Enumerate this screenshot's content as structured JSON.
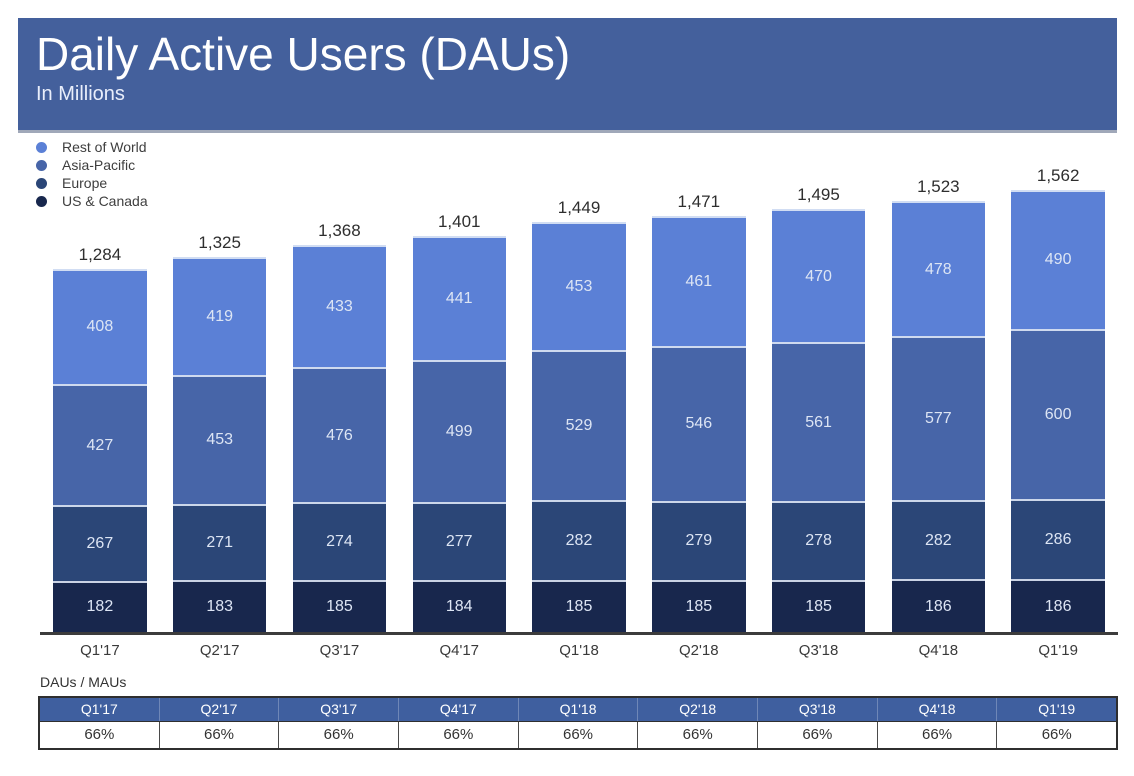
{
  "header": {
    "title": "Daily Active Users (DAUs)",
    "subtitle": "In Millions"
  },
  "chart_data": {
    "type": "bar",
    "stacked": true,
    "title": "Daily Active Users (DAUs)",
    "ylabel": "In Millions",
    "xlabel": "",
    "grid": false,
    "legend_position": "top-left",
    "categories": [
      "Q1'17",
      "Q2'17",
      "Q3'17",
      "Q4'17",
      "Q1'18",
      "Q2'18",
      "Q3'18",
      "Q4'18",
      "Q1'19"
    ],
    "series": [
      {
        "name": "Rest of World",
        "color": "#5b80d6",
        "values": [
          408,
          419,
          433,
          441,
          453,
          461,
          470,
          478,
          490
        ]
      },
      {
        "name": "Asia-Pacific",
        "color": "#4765a8",
        "values": [
          427,
          453,
          476,
          499,
          529,
          546,
          561,
          577,
          600
        ]
      },
      {
        "name": "Europe",
        "color": "#2b4677",
        "values": [
          267,
          271,
          274,
          277,
          282,
          279,
          278,
          282,
          286
        ]
      },
      {
        "name": "US & Canada",
        "color": "#18274d",
        "values": [
          182,
          183,
          185,
          184,
          185,
          185,
          185,
          186,
          186
        ]
      }
    ],
    "totals": [
      "1,284",
      "1,325",
      "1,368",
      "1,401",
      "1,449",
      "1,471",
      "1,495",
      "1,523",
      "1,562"
    ],
    "ylim": [
      0,
      1650
    ]
  },
  "ratio_table": {
    "label": "DAUs / MAUs",
    "headers": [
      "Q1'17",
      "Q2'17",
      "Q3'17",
      "Q4'17",
      "Q1'18",
      "Q2'18",
      "Q3'18",
      "Q4'18",
      "Q1'19"
    ],
    "values": [
      "66%",
      "66%",
      "66%",
      "66%",
      "66%",
      "66%",
      "66%",
      "66%",
      "66%"
    ]
  },
  "colors": {
    "banner": "#44609c",
    "table_header": "#3f5f9f",
    "axis_line": "#3c3c3c",
    "total_label_text": "#2e2e2e",
    "segment_value_text": "#dde5f4"
  }
}
